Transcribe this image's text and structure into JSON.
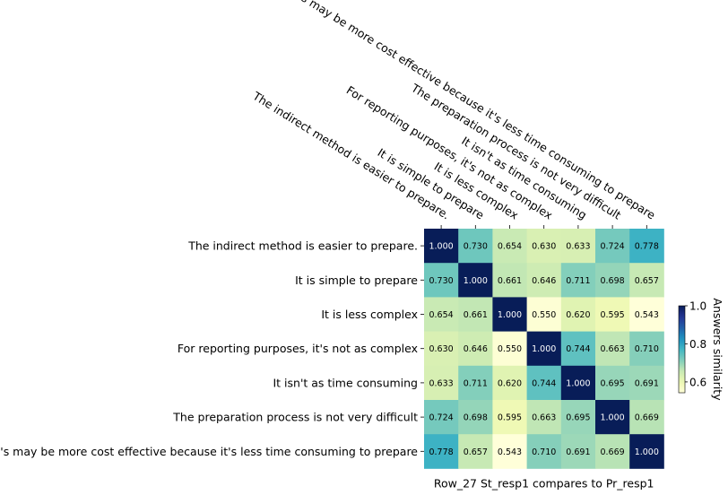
{
  "chart_data": {
    "type": "heatmap",
    "title": "",
    "xlabel": "Row_27 St_resp1 compares to Pr_resp1",
    "ylabel": "",
    "x_labels": [
      "The indirect method is easier to prepare.",
      "It is simple to prepare",
      "It is less complex",
      "For reporting purposes, it's not as complex",
      "It isn't as time consuming",
      "The preparation process is not very difficult",
      "It's may be more cost effective because it's less time consuming to prepare"
    ],
    "y_labels": [
      "The indirect method is easier to prepare.",
      "It is simple to prepare",
      "It is less complex",
      "For reporting purposes, it's not as complex",
      "It isn't as time consuming",
      "The preparation process is not very difficult",
      "It's may be more cost effective because it's less time consuming to prepare"
    ],
    "values": [
      [
        1.0,
        0.73,
        0.654,
        0.63,
        0.633,
        0.724,
        0.778
      ],
      [
        0.73,
        1.0,
        0.661,
        0.646,
        0.711,
        0.698,
        0.657
      ],
      [
        0.654,
        0.661,
        1.0,
        0.55,
        0.62,
        0.595,
        0.543
      ],
      [
        0.63,
        0.646,
        0.55,
        1.0,
        0.744,
        0.663,
        0.71
      ],
      [
        0.633,
        0.711,
        0.62,
        0.744,
        1.0,
        0.695,
        0.691
      ],
      [
        0.724,
        0.698,
        0.595,
        0.663,
        0.695,
        1.0,
        0.669
      ],
      [
        0.778,
        0.657,
        0.543,
        0.71,
        0.691,
        0.669,
        1.0
      ]
    ],
    "value_format": "3 decimals",
    "colormap": "YlGnBu",
    "colorbar": {
      "label": "Answers similarity",
      "range": [
        0.543,
        1.0
      ],
      "ticks": [
        0.6,
        0.8,
        1.0
      ],
      "tick_labels": [
        "0.6",
        "0.8",
        "1.0"
      ]
    }
  }
}
